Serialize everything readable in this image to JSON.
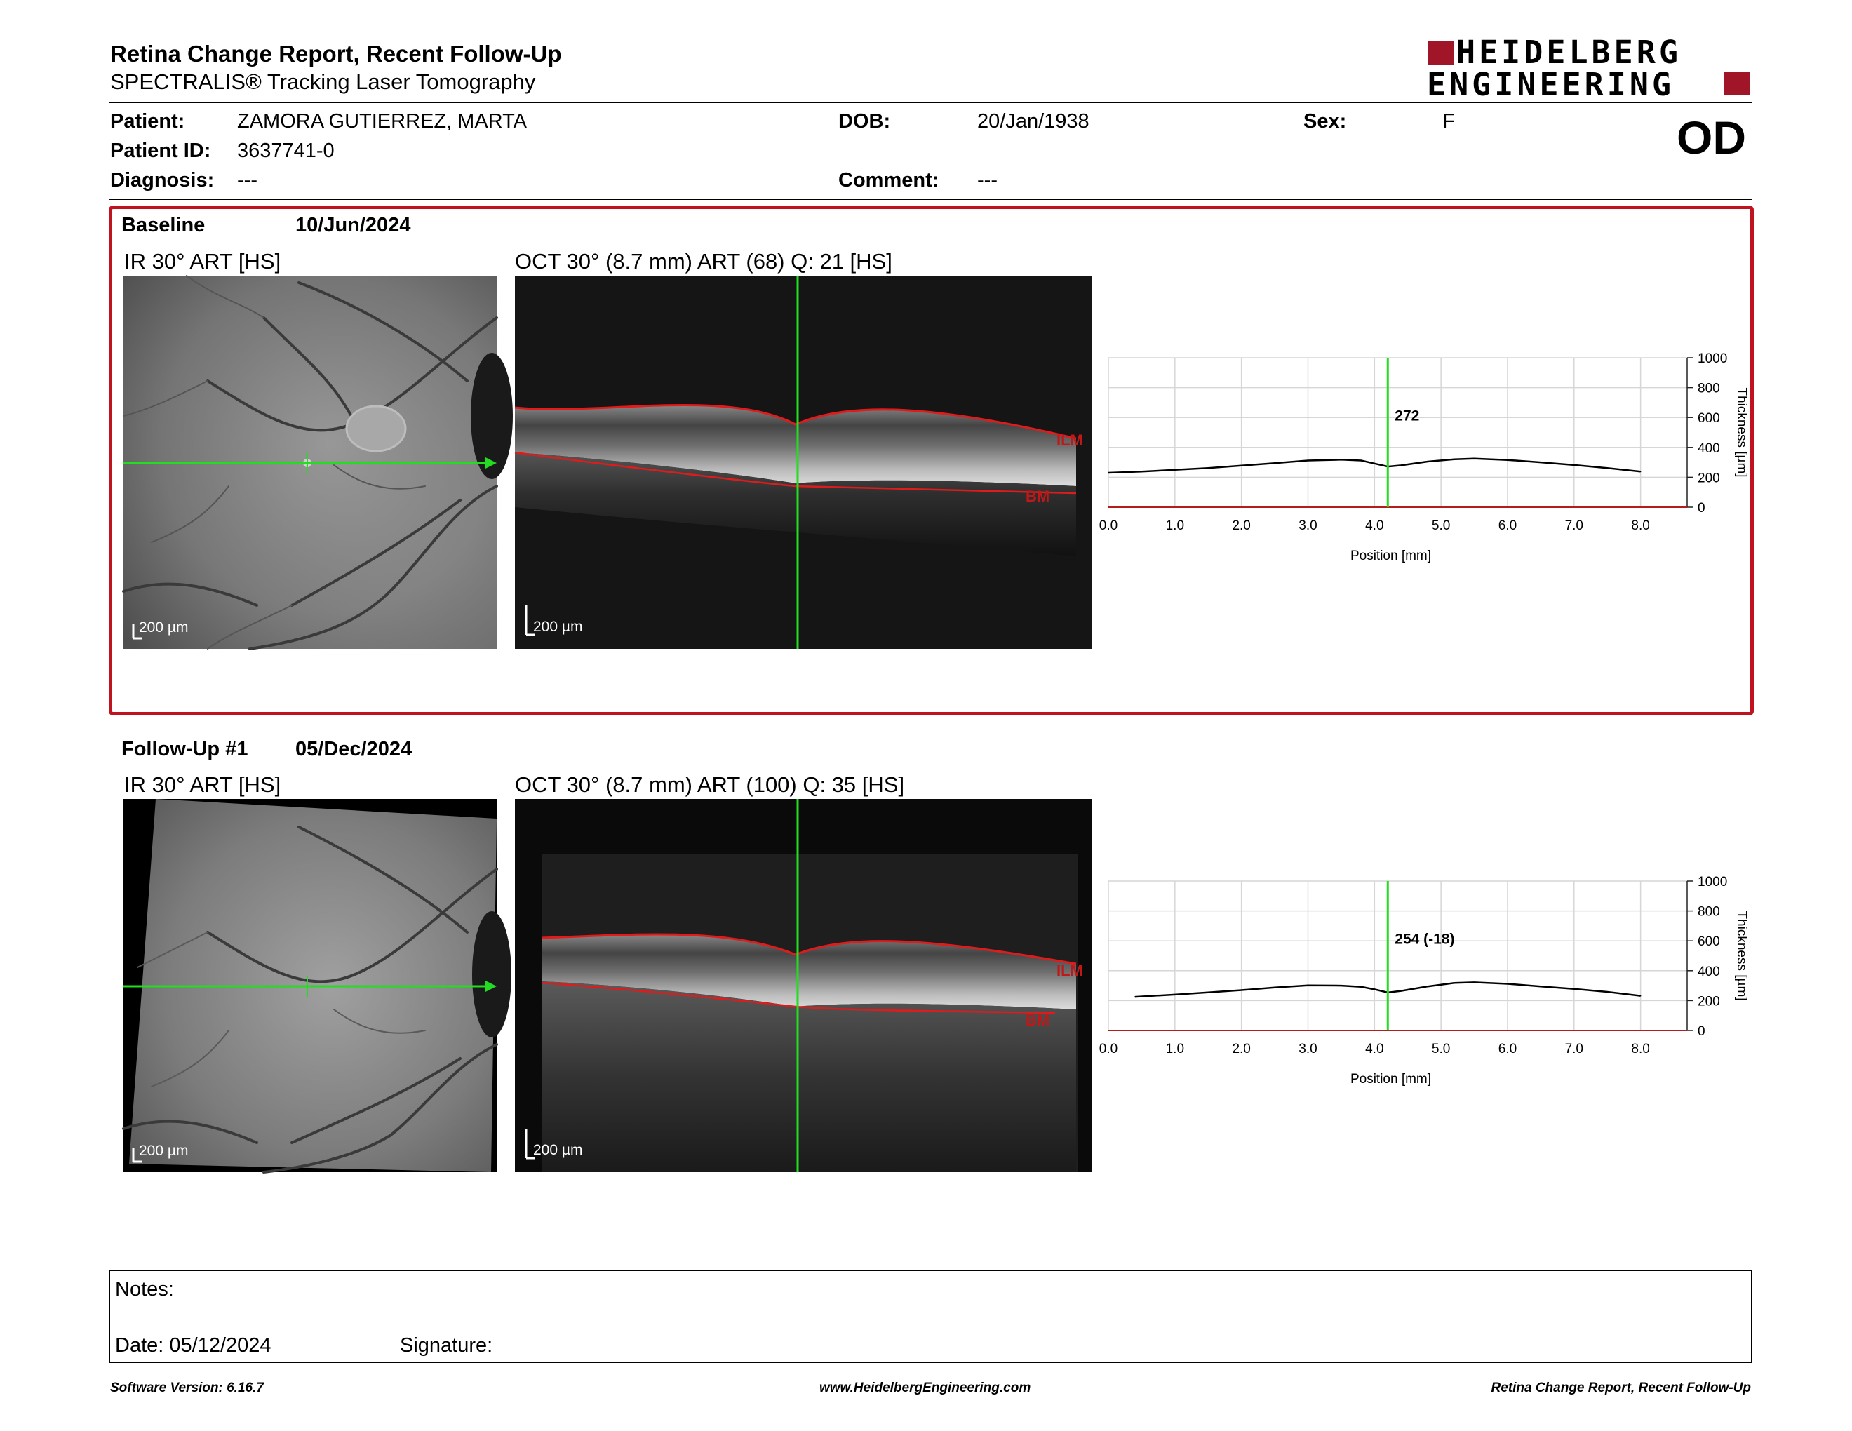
{
  "header": {
    "title": "Retina Change Report, Recent Follow-Up",
    "subtitle": "SPECTRALIS® Tracking Laser Tomography",
    "logo_line1": "HEIDELBERG",
    "logo_line2": "ENGINEERING",
    "eye": "OD",
    "brand_color": "#a01628"
  },
  "patient": {
    "patient_label": "Patient:",
    "patient_value": "ZAMORA GUTIERREZ, MARTA",
    "id_label": "Patient ID:",
    "id_value": "3637741-0",
    "diagnosis_label": "Diagnosis:",
    "diagnosis_value": "---",
    "dob_label": "DOB:",
    "dob_value": "20/Jan/1938",
    "comment_label": "Comment:",
    "comment_value": "---",
    "sex_label": "Sex:",
    "sex_value": "F"
  },
  "exams": [
    {
      "name": "Baseline",
      "date": "10/Jun/2024",
      "ir_caption": "IR 30° ART [HS]",
      "oct_caption": "OCT 30° (8.7 mm) ART (68) Q: 21 [HS]",
      "scale_label": "200 µm",
      "ilm_label": "ILM",
      "bm_label": "BM",
      "highlighted": true,
      "thickness_label": "272",
      "chart_index": 0
    },
    {
      "name": "Follow-Up #1",
      "date": "05/Dec/2024",
      "ir_caption": "IR 30° ART [HS]",
      "oct_caption": "OCT 30° (8.7 mm) ART (100) Q: 35 [HS]",
      "scale_label": "200 µm",
      "ilm_label": "ILM",
      "bm_label": "BM",
      "highlighted": false,
      "thickness_label": "254 (-18)",
      "chart_index": 1
    }
  ],
  "chart_data": [
    {
      "type": "line",
      "xlabel": "Position [mm]",
      "ylabel": "Thickness [µm]",
      "xlim": [
        0,
        8.7
      ],
      "ylim": [
        0,
        1000
      ],
      "x_ticks": [
        "0.0",
        "1.0",
        "2.0",
        "3.0",
        "4.0",
        "5.0",
        "6.0",
        "7.0",
        "8.0"
      ],
      "y_ticks": [
        "0",
        "200",
        "400",
        "600",
        "800",
        "1000"
      ],
      "grid": true,
      "cursor_x": 4.2,
      "cursor_label": "272",
      "series": [
        {
          "x": [
            0.0,
            0.5,
            1.0,
            1.5,
            2.0,
            2.5,
            3.0,
            3.5,
            3.8,
            4.0,
            4.2,
            4.4,
            4.8,
            5.2,
            5.5,
            6.0,
            6.5,
            7.0,
            7.5,
            8.0
          ],
          "y": [
            230,
            238,
            250,
            262,
            278,
            295,
            312,
            318,
            312,
            292,
            272,
            280,
            305,
            320,
            325,
            316,
            300,
            282,
            262,
            238
          ]
        }
      ]
    },
    {
      "type": "line",
      "xlabel": "Position [mm]",
      "ylabel": "Thickness [µm]",
      "xlim": [
        0,
        8.7
      ],
      "ylim": [
        0,
        1000
      ],
      "x_ticks": [
        "0.0",
        "1.0",
        "2.0",
        "3.0",
        "4.0",
        "5.0",
        "6.0",
        "7.0",
        "8.0"
      ],
      "y_ticks": [
        "0",
        "200",
        "400",
        "600",
        "800",
        "1000"
      ],
      "grid": true,
      "cursor_x": 4.2,
      "cursor_label": "254 (-18)",
      "series": [
        {
          "x": [
            0.4,
            1.0,
            1.5,
            2.0,
            2.5,
            3.0,
            3.5,
            3.8,
            4.0,
            4.2,
            4.4,
            4.8,
            5.2,
            5.5,
            6.0,
            6.5,
            7.0,
            7.5,
            8.0
          ],
          "y": [
            225,
            240,
            255,
            270,
            288,
            302,
            300,
            292,
            275,
            254,
            265,
            295,
            318,
            322,
            312,
            295,
            278,
            258,
            232
          ]
        }
      ]
    }
  ],
  "notes": {
    "notes_label": "Notes:",
    "date_label": "Date: 05/12/2024",
    "signature_label": "Signature:"
  },
  "footer": {
    "left": "Software Version: 6.16.7",
    "center": "www.HeidelbergEngineering.com",
    "right": "Retina Change Report, Recent Follow-Up"
  }
}
